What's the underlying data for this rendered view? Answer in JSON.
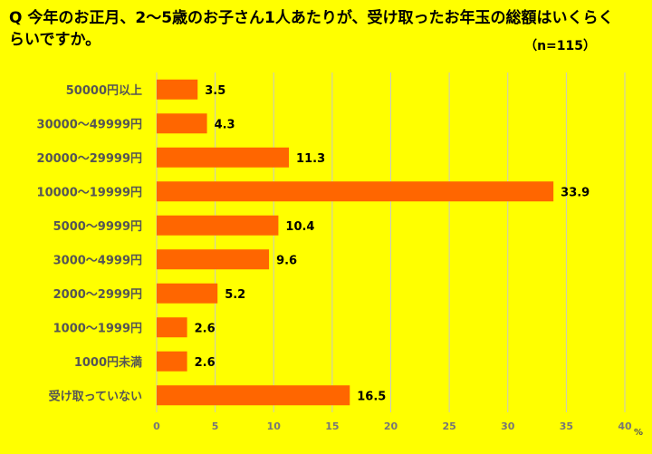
{
  "title": "Q 今年のお正月、2〜5歳のお子さん1人あたりが、受け取ったお年玉の総額はいくらくらいですか。",
  "sample_size": "（n=115）",
  "chart_data": {
    "type": "bar",
    "orientation": "horizontal",
    "title": "Q 今年のお正月、2〜5歳のお子さん1人あたりが、受け取ったお年玉の総額はいくらくらいですか。",
    "categories": [
      "50000円以上",
      "30000〜49999円",
      "20000〜29999円",
      "10000〜19999円",
      "5000〜9999円",
      "3000〜4999円",
      "2000〜2999円",
      "1000〜1999円",
      "1000円未満",
      "受け取っていない"
    ],
    "values": [
      3.5,
      4.3,
      11.3,
      33.9,
      10.4,
      9.6,
      5.2,
      2.6,
      2.6,
      16.5
    ],
    "xlim": [
      0,
      40
    ],
    "xticks": [
      0,
      5,
      10,
      15,
      20,
      25,
      30,
      35,
      40
    ],
    "xunit": "%",
    "grid": true,
    "legend": "none",
    "colors": {
      "bar": "#FF6600",
      "background": "#FFFF00",
      "grid": "#C8C8C8"
    }
  }
}
